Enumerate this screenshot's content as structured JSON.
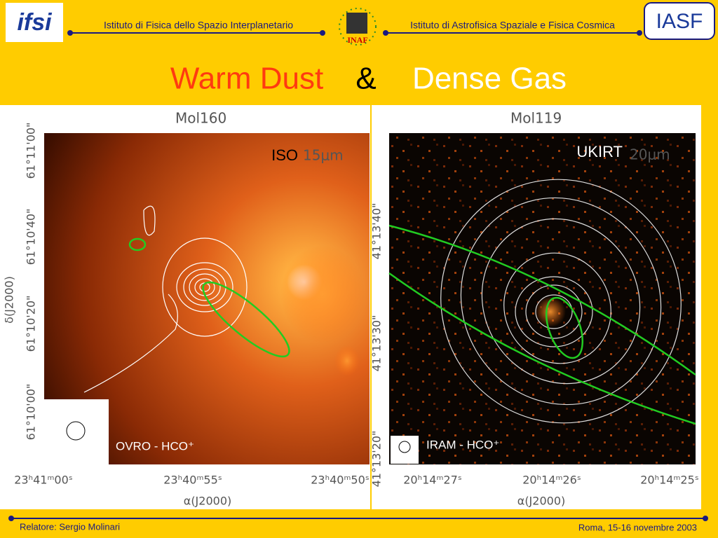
{
  "header": {
    "logo_left": "ifsi",
    "logo_center": "INAF",
    "logo_right": "IASF",
    "institute_left": "Istituto di Fisica dello Spazio Interplanetario",
    "institute_right": "Istituto di Astrofisica Spaziale e Fisica Cosmica"
  },
  "title": {
    "part1": "Warm Dust",
    "part2": "&",
    "part3": "Dense Gas"
  },
  "panels": [
    {
      "name": "Mol160",
      "instrument": "ISO",
      "wavelength": "15μm",
      "beam_label": "OVRO - HCO⁺",
      "y_label": "δ(J2000)",
      "x_label": "α(J2000)",
      "y_ticks": [
        "61°11'00\"",
        "61°10'40\"",
        "61°10'20\"",
        "61°10'00\""
      ],
      "x_ticks": [
        "23ʰ41ᵐ00ˢ",
        "23ʰ40ᵐ55ˢ",
        "23ʰ40ᵐ50ˢ"
      ]
    },
    {
      "name": "Mol119",
      "instrument": "UKIRT",
      "wavelength": "20μm",
      "beam_label": "IRAM - HCO⁺",
      "x_label": "α(J2000)",
      "y_ticks": [
        "41°13'40\"",
        "41°13'30\"",
        "41°13'20\""
      ],
      "x_ticks": [
        "20ʰ14ᵐ27ˢ",
        "20ʰ14ᵐ26ˢ",
        "20ʰ14ᵐ25ˢ"
      ]
    }
  ],
  "footer": {
    "speaker": "Relatore: Sergio Molinari",
    "place_date": "Roma, 15-16 novembre 2003"
  }
}
